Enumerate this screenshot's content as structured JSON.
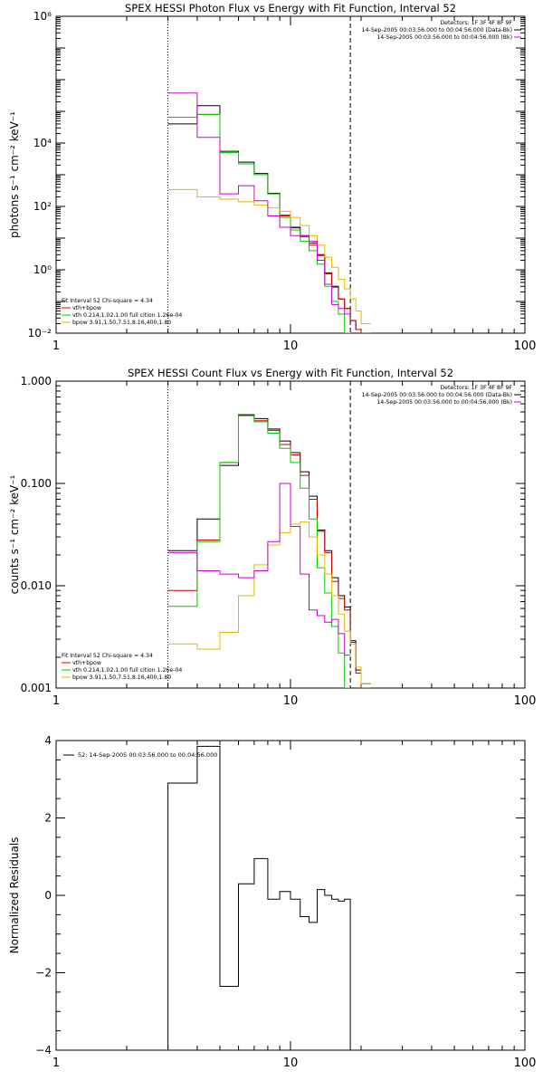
{
  "colors": {
    "data": "#000000",
    "total": "#cc0000",
    "vth": "#00cc00",
    "bpow": "#e6b800",
    "background": "#cc00cc"
  },
  "chart_data": [
    {
      "type": "line",
      "title": "SPEX HESSI Photon Flux vs Energy with Fit Function, Interval 52",
      "xlabel": "",
      "ylabel": "photons s⁻¹ cm⁻² keV⁻¹",
      "xscale": "log",
      "yscale": "log",
      "xlim": [
        1,
        100
      ],
      "ylim": [
        0.01,
        100000000
      ],
      "x_ticks": [
        {
          "v": 1,
          "label": "1"
        },
        {
          "v": 10,
          "label": "10"
        },
        {
          "v": 100,
          "label": "100"
        }
      ],
      "y_ticks": [
        {
          "v": 0.01,
          "label": "10⁻²"
        },
        {
          "v": 1,
          "label": "10⁰"
        },
        {
          "v": 100,
          "label": "10²"
        },
        {
          "v": 10000,
          "label": "10⁴"
        },
        {
          "v": 100000000,
          "label": "10⁸"
        }
      ],
      "vlines": [
        {
          "x": 3,
          "style": "dotted"
        },
        {
          "x": 18,
          "style": "dashed"
        }
      ],
      "legend_top_right": [
        {
          "text": "Detectors: 1F 3F 4F 8F 9F",
          "color": ""
        },
        {
          "text": "14-Sep-2005 00:03:56.000 to 00:04:56.000 (Data-Bk)",
          "color": "#000000"
        },
        {
          "text": "14-Sep-2005 00:03:56.000 to 00:04:56.000 (Bk)",
          "color": "#cc00cc"
        }
      ],
      "legend_bottom_left": [
        {
          "text": "Fit Interval 52   Chi-square = 4.34",
          "color": ""
        },
        {
          "text": "vth+bpow",
          "color": "#cc0000"
        },
        {
          "text": "vth 0.214,1.02,1.00  full cition 1.26e-04",
          "color": "#00cc00"
        },
        {
          "text": "bpow 3.91,1.50,7.51,8.16,400,1.80",
          "color": "#e6b800"
        }
      ],
      "series": [
        {
          "key": "data",
          "edges": [
            3,
            4,
            5,
            6,
            7,
            8,
            9,
            10,
            11,
            12,
            13,
            14,
            15,
            16,
            17,
            18,
            19,
            20,
            22
          ],
          "values": [
            40000,
            150000,
            5500,
            2500,
            1100,
            260,
            52,
            22,
            12,
            7,
            3,
            0.8,
            0.3,
            0.12,
            0.06,
            0.025,
            0.013,
            0.01
          ]
        },
        {
          "key": "total",
          "edges": [
            3,
            4,
            5,
            6,
            7,
            8,
            9,
            10,
            11,
            12,
            13,
            14,
            15,
            16,
            17,
            18,
            19,
            20,
            22
          ],
          "values": [
            65000,
            80000,
            5000,
            2200,
            1000,
            250,
            50,
            21,
            11,
            6,
            2.8,
            0.75,
            0.28,
            0.12,
            0.06,
            0.025,
            0.013,
            0.01
          ]
        },
        {
          "key": "vth",
          "edges": [
            3,
            4,
            5,
            6,
            7,
            8,
            9,
            10,
            11,
            12,
            13,
            14,
            15,
            16,
            17,
            18
          ],
          "values": [
            65000,
            80000,
            5000,
            2200,
            1000,
            250,
            45,
            18,
            8,
            4,
            1.5,
            0.3,
            0.1,
            0.04,
            0.01
          ]
        },
        {
          "key": "bpow",
          "edges": [
            3,
            4,
            5,
            6,
            7,
            8,
            9,
            10,
            11,
            12,
            13,
            14,
            15,
            16,
            17,
            18,
            19,
            20,
            22
          ],
          "values": [
            340,
            200,
            170,
            140,
            110,
            90,
            70,
            45,
            25,
            12,
            6,
            2.5,
            1.2,
            0.5,
            0.25,
            0.12,
            0.05,
            0.02
          ]
        },
        {
          "key": "background",
          "edges": [
            3,
            4,
            5,
            6,
            7,
            8,
            9,
            10,
            11,
            12,
            13,
            14,
            15,
            16,
            17,
            18
          ],
          "values": [
            380000,
            15000,
            250,
            450,
            150,
            50,
            22,
            12,
            12,
            8,
            2,
            0.35,
            0.08,
            0.06,
            0.04
          ]
        }
      ]
    },
    {
      "type": "line",
      "title": "SPEX HESSI Count Flux vs Energy with Fit Function, Interval 52",
      "xlabel": "",
      "ylabel": "counts s⁻¹ cm⁻² keV⁻¹",
      "xscale": "log",
      "yscale": "log",
      "xlim": [
        1,
        100
      ],
      "ylim": [
        0.001,
        1
      ],
      "x_ticks": [
        {
          "v": 1,
          "label": "1"
        },
        {
          "v": 10,
          "label": "10"
        },
        {
          "v": 100,
          "label": "100"
        }
      ],
      "y_ticks": [
        {
          "v": 0.001,
          "label": "0.001"
        },
        {
          "v": 0.01,
          "label": "0.010"
        },
        {
          "v": 0.1,
          "label": "0.100"
        },
        {
          "v": 1,
          "label": "1.000"
        }
      ],
      "vlines": [
        {
          "x": 3,
          "style": "dotted"
        },
        {
          "x": 18,
          "style": "dashed"
        }
      ],
      "legend_top_right": [
        {
          "text": "Detectors: 1F 3F 4F 8F 9F",
          "color": ""
        },
        {
          "text": "14-Sep-2005 00:03:56.000 to 00:04:56.000 (Data-Bk)",
          "color": "#000000"
        },
        {
          "text": "14-Sep-2005 00:03:56.000 to 00:04:56.000 (Bk)",
          "color": "#cc00cc"
        }
      ],
      "legend_bottom_left": [
        {
          "text": "Fit Interval 52   Chi-square = 4.34",
          "color": ""
        },
        {
          "text": "vth+bpow",
          "color": "#cc0000"
        },
        {
          "text": "vth 0.214,1.02,1.00  full cition 1.26e-04",
          "color": "#00cc00"
        },
        {
          "text": "bpow 3.91,1.50,7.51,8.16,400,1.80",
          "color": "#e6b800"
        }
      ],
      "series": [
        {
          "key": "data",
          "edges": [
            3,
            4,
            5,
            6,
            7,
            8,
            9,
            10,
            11,
            12,
            13,
            14,
            15,
            16,
            17,
            18,
            19,
            20,
            22
          ],
          "values": [
            0.022,
            0.045,
            0.15,
            0.47,
            0.43,
            0.34,
            0.26,
            0.2,
            0.13,
            0.075,
            0.035,
            0.022,
            0.012,
            0.008,
            0.0062,
            0.0029,
            0.0015,
            0.0011
          ]
        },
        {
          "key": "total",
          "edges": [
            3,
            4,
            5,
            6,
            7,
            8,
            9,
            10,
            11,
            12,
            13,
            14,
            15,
            16,
            17,
            18,
            19,
            20,
            22
          ],
          "values": [
            0.009,
            0.028,
            0.16,
            0.46,
            0.41,
            0.33,
            0.24,
            0.19,
            0.12,
            0.07,
            0.034,
            0.021,
            0.011,
            0.0075,
            0.0058,
            0.0028,
            0.0014,
            0.001
          ]
        },
        {
          "key": "vth",
          "edges": [
            3,
            4,
            5,
            6,
            7,
            8,
            9,
            10,
            11,
            12,
            13,
            14,
            15,
            16,
            17,
            18
          ],
          "values": [
            0.0063,
            0.027,
            0.16,
            0.46,
            0.4,
            0.31,
            0.22,
            0.16,
            0.09,
            0.045,
            0.015,
            0.0085,
            0.004,
            0.0022,
            0.001
          ]
        },
        {
          "key": "bpow",
          "edges": [
            3,
            4,
            5,
            6,
            7,
            8,
            9,
            10,
            11,
            12,
            13,
            14,
            15,
            16,
            17,
            18,
            19,
            20,
            22
          ],
          "values": [
            0.0027,
            0.0024,
            0.0035,
            0.008,
            0.016,
            0.025,
            0.033,
            0.04,
            0.042,
            0.03,
            0.02,
            0.013,
            0.008,
            0.0053,
            0.0036,
            0.0027,
            0.0016,
            0.0011
          ]
        },
        {
          "key": "background",
          "edges": [
            3,
            4,
            5,
            6,
            7,
            8,
            9,
            10,
            11,
            12,
            13,
            14,
            15,
            16,
            17,
            18
          ],
          "values": [
            0.021,
            0.014,
            0.013,
            0.012,
            0.014,
            0.027,
            0.1,
            0.038,
            0.013,
            0.0058,
            0.0051,
            0.0044,
            0.0047,
            0.0034,
            0.0021
          ]
        }
      ]
    },
    {
      "type": "line",
      "title": "",
      "xlabel": "",
      "ylabel": "Normalized Residuals",
      "xscale": "log",
      "yscale": "linear",
      "xlim": [
        1,
        100
      ],
      "ylim": [
        -4,
        4
      ],
      "x_ticks": [
        {
          "v": 1,
          "label": "1"
        },
        {
          "v": 10,
          "label": "10"
        },
        {
          "v": 100,
          "label": "100"
        }
      ],
      "y_ticks": [
        {
          "v": -4,
          "label": "−4"
        },
        {
          "v": -2,
          "label": "−2"
        },
        {
          "v": 0,
          "label": "0"
        },
        {
          "v": 2,
          "label": "2"
        },
        {
          "v": 4,
          "label": "4"
        }
      ],
      "vlines": [],
      "legend_top_right": [],
      "legend_top_left": [
        {
          "text": "52: 14-Sep-2005 00:03:56.000 to 00:04:56.000",
          "color": "#000000"
        }
      ],
      "legend_bottom_left": [],
      "series": [
        {
          "key": "data",
          "edges": [
            3,
            4,
            5,
            6,
            7,
            8,
            9,
            10,
            11,
            12,
            13,
            14,
            15,
            16,
            17,
            18
          ],
          "values": [
            2.9,
            3.85,
            -2.35,
            0.3,
            0.95,
            -0.1,
            0.1,
            -0.1,
            -0.55,
            -0.7,
            0.15,
            0.0,
            -0.1,
            -0.15,
            -0.1
          ],
          "drop_ends": true
        }
      ]
    }
  ]
}
